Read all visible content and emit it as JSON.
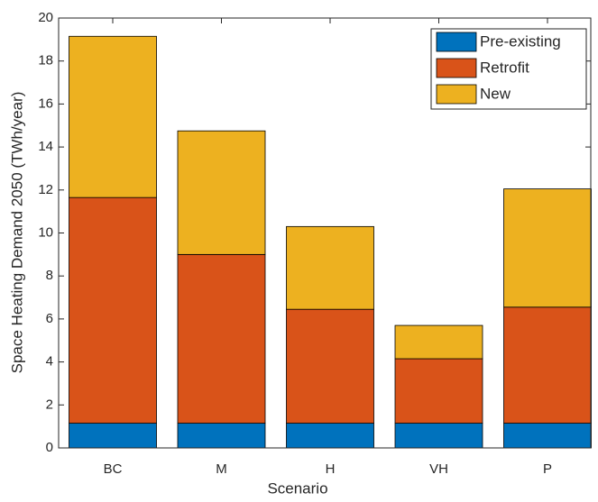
{
  "chart_data": {
    "type": "stacked_bar",
    "xlabel": "Scenario",
    "ylabel": "Space Heating Demand 2050 (TWh/year)",
    "categories": [
      "BC",
      "M",
      "H",
      "VH",
      "P"
    ],
    "series": [
      {
        "name": "Pre-existing",
        "color": "#0072BD",
        "values": [
          1.15,
          1.15,
          1.15,
          1.15,
          1.15
        ]
      },
      {
        "name": "Retrofit",
        "color": "#D95319",
        "values": [
          10.5,
          7.85,
          5.3,
          3.0,
          5.4
        ]
      },
      {
        "name": "New",
        "color": "#EDB120",
        "values": [
          7.5,
          5.75,
          3.85,
          1.55,
          5.5
        ]
      }
    ],
    "ylim": [
      0,
      20
    ],
    "yticks": [
      0,
      2,
      4,
      6,
      8,
      10,
      12,
      14,
      16,
      18,
      20
    ],
    "legend": "northeast"
  }
}
